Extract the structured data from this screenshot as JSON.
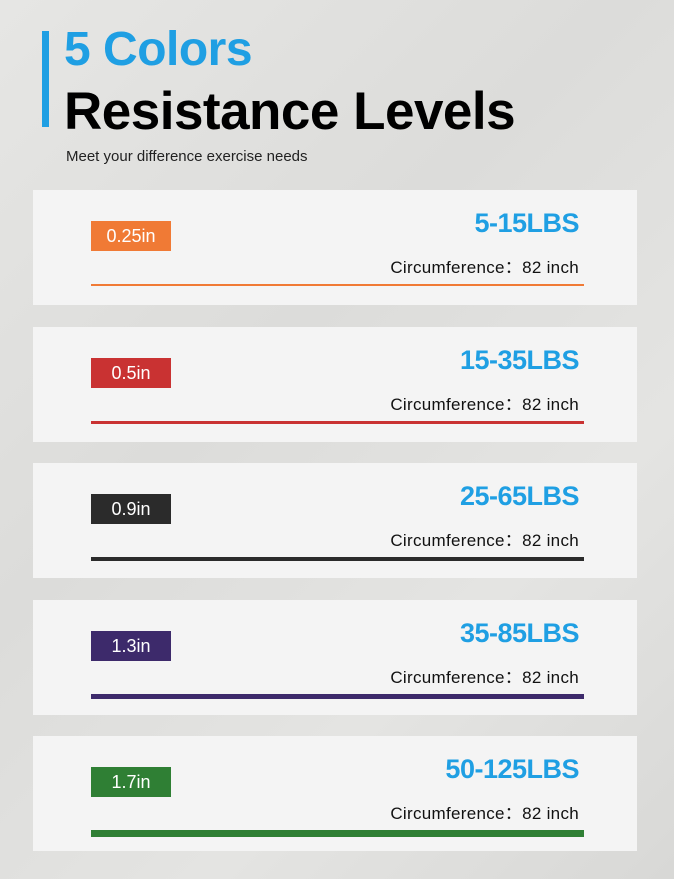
{
  "header": {
    "title_line1": "5 Colors",
    "title_line2": "Resistance Levels",
    "subtitle": "Meet your difference exercise needs",
    "accent_color": "#1f9fe3"
  },
  "levels": [
    {
      "size": "0.25in",
      "range": "5-15LBS",
      "circumference": "Circumference：82 inch",
      "color": "#f07a35"
    },
    {
      "size": "0.5in",
      "range": "15-35LBS",
      "circumference": "Circumference：82 inch",
      "color": "#c93232"
    },
    {
      "size": "0.9in",
      "range": "25-65LBS",
      "circumference": "Circumference：82 inch",
      "color": "#2b2b2b"
    },
    {
      "size": "1.3in",
      "range": "35-85LBS",
      "circumference": "Circumference：82 inch",
      "color": "#3d2a6b"
    },
    {
      "size": "1.7in",
      "range": "50-125LBS",
      "circumference": "Circumference：82 inch",
      "color": "#2f7f34"
    }
  ]
}
